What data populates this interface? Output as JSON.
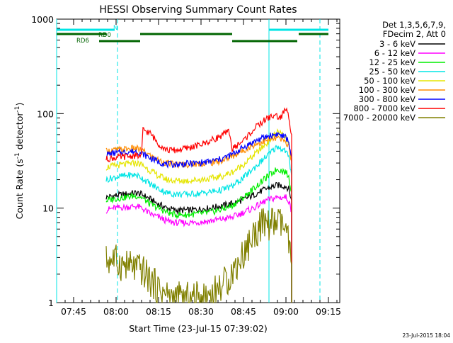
{
  "chart_data": {
    "type": "line",
    "title": "HESSI Observing Summary Count Rates",
    "xlabel": "Start Time (23-Jul-15 07:39:02)",
    "ylabel_main": "Count Rate (s",
    "ylabel_sup1": "-1",
    "ylabel_mid": " detector",
    "ylabel_sup2": "-1",
    "ylabel_end": ")",
    "yscale": "log",
    "ylim": [
      1,
      1000
    ],
    "xlim_minutes": [
      0,
      100
    ],
    "y_ticks": [
      {
        "value": 1,
        "label": "1"
      },
      {
        "value": 10,
        "label": "10"
      },
      {
        "value": 100,
        "label": "100"
      },
      {
        "value": 1000,
        "label": "1000"
      }
    ],
    "x_ticks": [
      {
        "minute": 6,
        "label": "07:45"
      },
      {
        "minute": 21,
        "label": "08:00"
      },
      {
        "minute": 36,
        "label": "08:15"
      },
      {
        "minute": 51,
        "label": "08:30"
      },
      {
        "minute": 66,
        "label": "08:45"
      },
      {
        "minute": 81,
        "label": "09:00"
      },
      {
        "minute": 96,
        "label": "09:15"
      }
    ],
    "legend_header": [
      "Det 1,3,5,6,7,9,",
      "FDecim 2, Att 0"
    ],
    "legend_position": "right",
    "series": [
      {
        "name": "3 - 6 keV",
        "color": "#000000",
        "points": [
          [
            17.5,
            13
          ],
          [
            20,
            13.5
          ],
          [
            24,
            14
          ],
          [
            28,
            14.5
          ],
          [
            30,
            14
          ],
          [
            33,
            12.5
          ],
          [
            36,
            11
          ],
          [
            39,
            10
          ],
          [
            42,
            9.5
          ],
          [
            46,
            9.5
          ],
          [
            50,
            9.7
          ],
          [
            54,
            10
          ],
          [
            58,
            10.5
          ],
          [
            62,
            11.2
          ],
          [
            66,
            12.3
          ],
          [
            70,
            14
          ],
          [
            74,
            16
          ],
          [
            78,
            17.5
          ],
          [
            81,
            17
          ],
          [
            82,
            16
          ],
          [
            83,
            12
          ]
        ]
      },
      {
        "name": "6 - 12 keV",
        "color": "#ff00ff",
        "points": [
          [
            17.5,
            9.5
          ],
          [
            20,
            10
          ],
          [
            24,
            10.2
          ],
          [
            28,
            10.5
          ],
          [
            30,
            10
          ],
          [
            33,
            8.7
          ],
          [
            36,
            8
          ],
          [
            39,
            7.3
          ],
          [
            42,
            7
          ],
          [
            46,
            7
          ],
          [
            50,
            7.1
          ],
          [
            54,
            7.3
          ],
          [
            58,
            7.6
          ],
          [
            62,
            8
          ],
          [
            66,
            9
          ],
          [
            70,
            10.2
          ],
          [
            74,
            12
          ],
          [
            78,
            13
          ],
          [
            81,
            13
          ],
          [
            82,
            12
          ],
          [
            83,
            9
          ]
        ]
      },
      {
        "name": "12 - 25 keV",
        "color": "#00ee00",
        "points": [
          [
            17.5,
            12
          ],
          [
            20,
            12.5
          ],
          [
            24,
            13
          ],
          [
            28,
            13.5
          ],
          [
            30,
            13
          ],
          [
            33,
            11
          ],
          [
            36,
            10
          ],
          [
            39,
            9
          ],
          [
            42,
            8.5
          ],
          [
            46,
            8.5
          ],
          [
            50,
            8.7
          ],
          [
            54,
            9
          ],
          [
            58,
            9.6
          ],
          [
            62,
            10.6
          ],
          [
            66,
            13
          ],
          [
            70,
            16.5
          ],
          [
            74,
            21
          ],
          [
            78,
            26
          ],
          [
            81,
            24
          ],
          [
            82,
            21
          ],
          [
            83,
            15
          ]
        ]
      },
      {
        "name": "25 - 50 keV",
        "color": "#00e5e5",
        "points": [
          [
            17.5,
            20
          ],
          [
            20,
            21
          ],
          [
            24,
            22
          ],
          [
            28,
            22.5
          ],
          [
            30,
            21
          ],
          [
            33,
            18
          ],
          [
            36,
            16
          ],
          [
            39,
            14.5
          ],
          [
            42,
            14
          ],
          [
            46,
            14
          ],
          [
            50,
            14.3
          ],
          [
            54,
            14.8
          ],
          [
            58,
            15.5
          ],
          [
            62,
            17
          ],
          [
            66,
            21
          ],
          [
            70,
            27
          ],
          [
            74,
            35
          ],
          [
            78,
            45
          ],
          [
            81,
            40
          ],
          [
            82,
            34
          ],
          [
            83,
            22
          ]
        ]
      },
      {
        "name": "50 - 100 keV",
        "color": "#e5e500",
        "points": [
          [
            17.5,
            27
          ],
          [
            20,
            28
          ],
          [
            24,
            29
          ],
          [
            28,
            30
          ],
          [
            30,
            29
          ],
          [
            33,
            25
          ],
          [
            36,
            22
          ],
          [
            39,
            20
          ],
          [
            42,
            19.5
          ],
          [
            46,
            19.5
          ],
          [
            50,
            20
          ],
          [
            54,
            20.5
          ],
          [
            58,
            21.5
          ],
          [
            62,
            24
          ],
          [
            66,
            29
          ],
          [
            70,
            37
          ],
          [
            74,
            48
          ],
          [
            78,
            65
          ],
          [
            81,
            55
          ],
          [
            82,
            46
          ],
          [
            83,
            30
          ]
        ]
      },
      {
        "name": "100 - 300 keV",
        "color": "#ff8c00",
        "points": [
          [
            17.5,
            40
          ],
          [
            20,
            41
          ],
          [
            24,
            42
          ],
          [
            28,
            43
          ],
          [
            30,
            41
          ],
          [
            33,
            36
          ],
          [
            36,
            32
          ],
          [
            39,
            30
          ],
          [
            42,
            29
          ],
          [
            46,
            29
          ],
          [
            50,
            29.5
          ],
          [
            54,
            30
          ],
          [
            58,
            31.5
          ],
          [
            62,
            35
          ],
          [
            66,
            41
          ],
          [
            70,
            47
          ],
          [
            74,
            52
          ],
          [
            78,
            55
          ],
          [
            81,
            50
          ],
          [
            82,
            45
          ],
          [
            83,
            32
          ]
        ]
      },
      {
        "name": "300 - 800 keV",
        "color": "#0000ff",
        "points": [
          [
            17.5,
            37
          ],
          [
            20,
            38
          ],
          [
            24,
            39
          ],
          [
            28,
            40
          ],
          [
            30,
            38
          ],
          [
            33,
            34
          ],
          [
            36,
            31
          ],
          [
            39,
            29
          ],
          [
            42,
            29
          ],
          [
            46,
            29.5
          ],
          [
            50,
            30
          ],
          [
            54,
            31
          ],
          [
            58,
            33
          ],
          [
            62,
            37
          ],
          [
            66,
            44
          ],
          [
            70,
            51
          ],
          [
            74,
            57
          ],
          [
            78,
            61
          ],
          [
            81,
            56
          ],
          [
            82,
            50
          ],
          [
            83,
            35
          ]
        ]
      },
      {
        "name": "800 - 7000 keV",
        "color": "#ff0000",
        "points": [
          [
            17.5,
            33
          ],
          [
            20,
            34
          ],
          [
            24,
            35
          ],
          [
            28,
            36
          ],
          [
            30,
            35
          ],
          [
            30.5,
            68
          ],
          [
            33,
            62
          ],
          [
            36,
            48
          ],
          [
            39,
            41
          ],
          [
            42,
            41
          ],
          [
            46,
            43
          ],
          [
            50,
            46
          ],
          [
            54,
            51
          ],
          [
            58,
            58
          ],
          [
            61,
            65
          ],
          [
            62,
            42
          ],
          [
            66,
            52
          ],
          [
            70,
            70
          ],
          [
            74,
            88
          ],
          [
            77,
            96
          ],
          [
            79,
            90
          ],
          [
            81,
            112
          ],
          [
            82,
            92
          ],
          [
            83,
            60
          ]
        ]
      },
      {
        "name": "7000 - 20000 keV",
        "color": "#808000",
        "points": [
          [
            17.5,
            2.8
          ],
          [
            20,
            2.9
          ],
          [
            22,
            2.6
          ],
          [
            24,
            2.5
          ],
          [
            26,
            2.4
          ],
          [
            28,
            2.3
          ],
          [
            30,
            2.2
          ],
          [
            32,
            1.9
          ],
          [
            34,
            1.6
          ],
          [
            36,
            1.4
          ],
          [
            38,
            1.25
          ],
          [
            40,
            1.15
          ],
          [
            44,
            1.1
          ],
          [
            48,
            1.1
          ],
          [
            52,
            1.15
          ],
          [
            55,
            1.25
          ],
          [
            58,
            1.5
          ],
          [
            60,
            1.7
          ],
          [
            62,
            2.1
          ],
          [
            64,
            2.6
          ],
          [
            66,
            3.3
          ],
          [
            68,
            4.2
          ],
          [
            70,
            5.5
          ],
          [
            72,
            6.5
          ],
          [
            74,
            6.8
          ],
          [
            76,
            6.8
          ],
          [
            78,
            7
          ],
          [
            80,
            6.5
          ],
          [
            81,
            5.5
          ],
          [
            82,
            4
          ],
          [
            83,
            2.5
          ]
        ]
      }
    ],
    "annotations": {
      "bars": [
        {
          "label": "N",
          "color": "#00e5e5",
          "level": 1,
          "segments": [
            [
              0,
              20.5
            ],
            [
              75,
              96
            ]
          ]
        },
        {
          "label": "RD0",
          "color": "#006400",
          "level": 2,
          "segments": [
            [
              0,
              17.5
            ],
            [
              29.5,
              62
            ],
            [
              85.5,
              96
            ]
          ]
        },
        {
          "label": "RD6",
          "color": "#006400",
          "level": 3,
          "segments": [
            [
              15,
              29.5
            ],
            [
              62,
              85
            ]
          ]
        }
      ],
      "vlines_solid_minutes": [
        0,
        75
      ],
      "vlines_dashed_minutes": [
        21.5,
        93
      ]
    },
    "footer_date": "23-Jul-2015 18:04"
  }
}
